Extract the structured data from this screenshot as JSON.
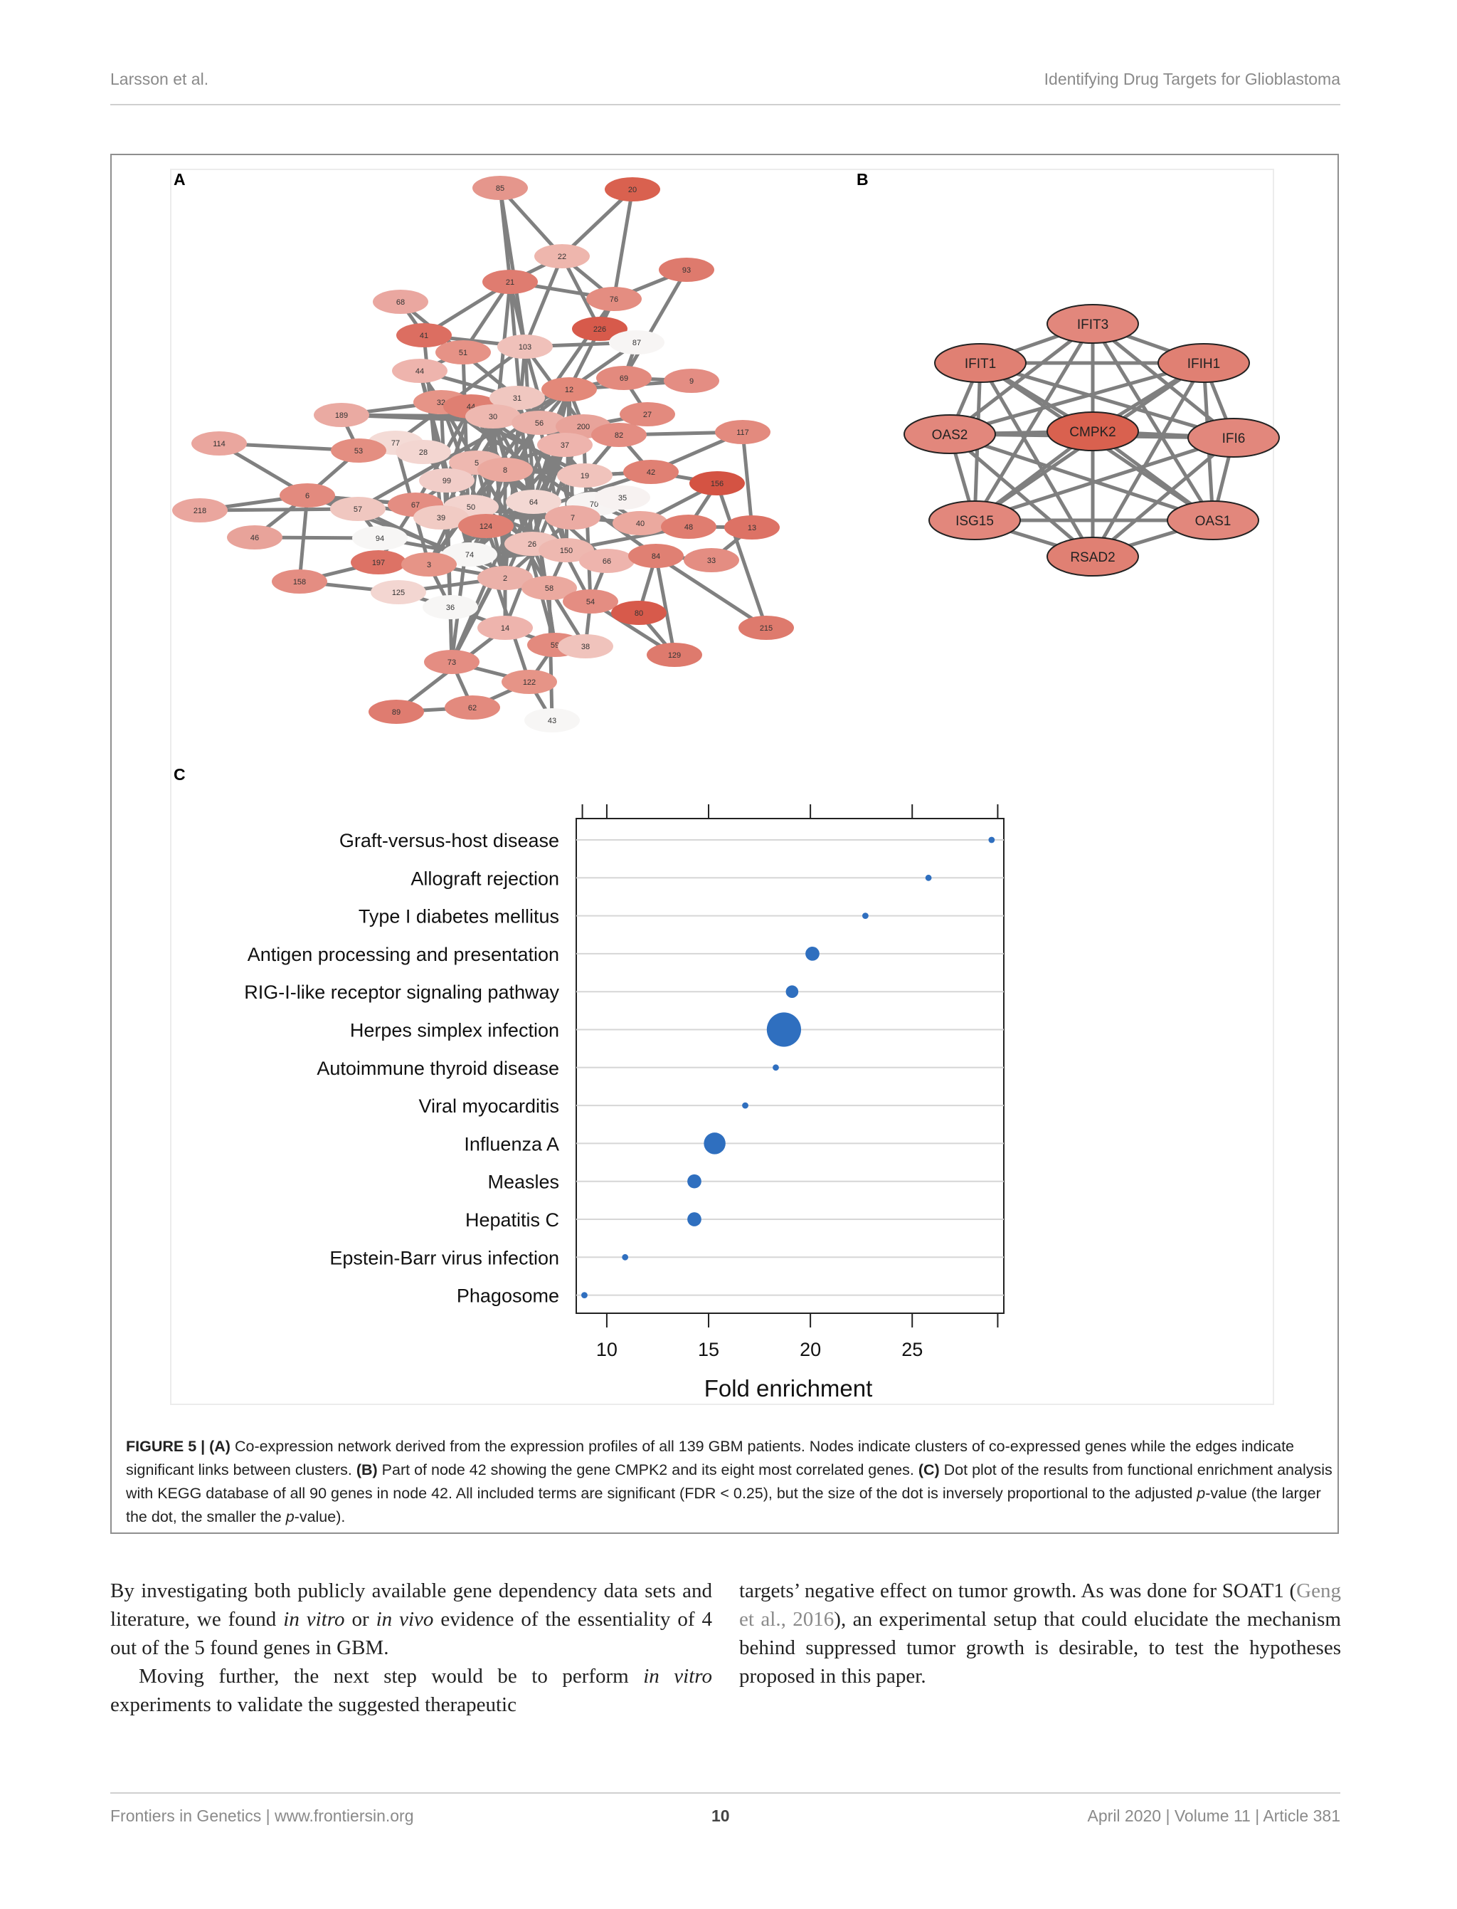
{
  "header": {
    "left": "Larsson et al.",
    "right": "Identifying Drug Targets for Glioblastoma"
  },
  "panels": {
    "a": "A",
    "b": "B",
    "c": "C"
  },
  "network_a": {
    "edge_color": "#808080",
    "nodes": [
      {
        "id": "85",
        "c": "#e5968c"
      },
      {
        "id": "20",
        "c": "#d9614f"
      },
      {
        "id": "22",
        "c": "#eeb6ad"
      },
      {
        "id": "93",
        "c": "#de7a6d"
      },
      {
        "id": "21",
        "c": "#df7c70"
      },
      {
        "id": "68",
        "c": "#eaa7a0"
      },
      {
        "id": "76",
        "c": "#e48d81"
      },
      {
        "id": "226",
        "c": "#d75a4b"
      },
      {
        "id": "87",
        "c": "#f7f5f4"
      },
      {
        "id": "41",
        "c": "#dc6e61"
      },
      {
        "id": "51",
        "c": "#e69286"
      },
      {
        "id": "103",
        "c": "#f0c1ba"
      },
      {
        "id": "44",
        "c": "#eeb4ad"
      },
      {
        "id": "69",
        "c": "#e38a7e"
      },
      {
        "id": "9",
        "c": "#e48d83"
      },
      {
        "id": "12",
        "c": "#e38879"
      },
      {
        "id": "32",
        "c": "#e69487"
      },
      {
        "id": "44b",
        "label": "44",
        "c": "#df7f72"
      },
      {
        "id": "31",
        "c": "#f0c7c0"
      },
      {
        "id": "30",
        "c": "#eeb8b0"
      },
      {
        "id": "27",
        "c": "#e38a7e"
      },
      {
        "id": "189",
        "c": "#eaaaa2"
      },
      {
        "id": "56",
        "c": "#ebb1a9"
      },
      {
        "id": "200",
        "c": "#e8a39a"
      },
      {
        "id": "82",
        "c": "#e48d82"
      },
      {
        "id": "117",
        "c": "#e38a7e"
      },
      {
        "id": "114",
        "c": "#eaa69e"
      },
      {
        "id": "77",
        "c": "#f4dbd6"
      },
      {
        "id": "53",
        "c": "#e48e81"
      },
      {
        "id": "28",
        "c": "#f3d6d1"
      },
      {
        "id": "37",
        "c": "#eeb4ad"
      },
      {
        "id": "5",
        "c": "#eeb8b0"
      },
      {
        "id": "8",
        "c": "#eba99f"
      },
      {
        "id": "99",
        "c": "#f1cdc8"
      },
      {
        "id": "19",
        "c": "#f0c3bc"
      },
      {
        "id": "42",
        "c": "#e08073"
      },
      {
        "id": "156",
        "c": "#d45343"
      },
      {
        "id": "6",
        "c": "#e38a7e"
      },
      {
        "id": "218",
        "c": "#eaa69e"
      },
      {
        "id": "57",
        "c": "#f0c7c0"
      },
      {
        "id": "67",
        "c": "#e48d82"
      },
      {
        "id": "50",
        "c": "#f3d3ce"
      },
      {
        "id": "39",
        "c": "#f1cbc4"
      },
      {
        "id": "64",
        "c": "#f3d8d3"
      },
      {
        "id": "70",
        "c": "#f7f4f3"
      },
      {
        "id": "35",
        "c": "#f7f2f1"
      },
      {
        "id": "7",
        "c": "#ebaba3"
      },
      {
        "id": "124",
        "c": "#e08073"
      },
      {
        "id": "40",
        "c": "#eba99f"
      },
      {
        "id": "48",
        "c": "#e07d70"
      },
      {
        "id": "13",
        "c": "#dd7265"
      },
      {
        "id": "46",
        "c": "#e8a39a"
      },
      {
        "id": "94",
        "c": "#f7f6f5"
      },
      {
        "id": "26",
        "c": "#f0c3bc"
      },
      {
        "id": "150",
        "c": "#eeb8b0"
      },
      {
        "id": "74",
        "c": "#f7f6f5"
      },
      {
        "id": "66",
        "c": "#eeb4ad"
      },
      {
        "id": "84",
        "c": "#e08073"
      },
      {
        "id": "33",
        "c": "#e48d82"
      },
      {
        "id": "197",
        "c": "#dd7265"
      },
      {
        "id": "3",
        "c": "#e69487"
      },
      {
        "id": "158",
        "c": "#e48d82"
      },
      {
        "id": "2",
        "c": "#ebb1a9"
      },
      {
        "id": "125",
        "c": "#f3d6d1"
      },
      {
        "id": "58",
        "c": "#eba99f"
      },
      {
        "id": "36",
        "c": "#f7f6f5"
      },
      {
        "id": "54",
        "c": "#e48d82"
      },
      {
        "id": "80",
        "c": "#d75a4b"
      },
      {
        "id": "215",
        "c": "#de7a6d"
      },
      {
        "id": "14",
        "c": "#eeb4ad"
      },
      {
        "id": "59",
        "c": "#e38a7e"
      },
      {
        "id": "38",
        "c": "#f0c3bc"
      },
      {
        "id": "129",
        "c": "#de7a6d"
      },
      {
        "id": "73",
        "c": "#e48d82"
      },
      {
        "id": "122",
        "c": "#e69487"
      },
      {
        "id": "89",
        "c": "#df7c70"
      },
      {
        "id": "62",
        "c": "#e38a7e"
      },
      {
        "id": "43",
        "c": "#f7f6f5"
      }
    ]
  },
  "network_b": {
    "center": {
      "label": "CMPK2",
      "c": "#d9614f"
    },
    "outer": [
      {
        "label": "IFIT3",
        "c": "#e2877c"
      },
      {
        "label": "IFIH1",
        "c": "#e08073"
      },
      {
        "label": "IFI6",
        "c": "#e2877c"
      },
      {
        "label": "OAS1",
        "c": "#e2877c"
      },
      {
        "label": "RSAD2",
        "c": "#e08073"
      },
      {
        "label": "ISG15",
        "c": "#e2877c"
      },
      {
        "label": "OAS2",
        "c": "#e2877c"
      },
      {
        "label": "IFIT1",
        "c": "#e08073"
      }
    ]
  },
  "chart_data": {
    "type": "scatter",
    "xlabel": "Fold enrichment",
    "xticks": [
      10,
      15,
      20,
      25
    ],
    "xlim": [
      8.5,
      29.5
    ],
    "grid": true,
    "dot_color": "#2f6fbf",
    "categories": [
      "Graft-versus-host disease",
      "Allograft rejection",
      "Type I diabetes mellitus",
      "Antigen processing and presentation",
      "RIG-I-like receptor signaling pathway",
      "Herpes simplex infection",
      "Autoimmune thyroid disease",
      "Viral myocarditis",
      "Influenza A",
      "Measles",
      "Hepatitis C",
      "Epstein-Barr virus infection",
      "Phagosome"
    ],
    "x": [
      28.9,
      25.8,
      22.7,
      20.1,
      19.1,
      18.7,
      18.3,
      16.8,
      15.3,
      14.3,
      14.3,
      10.9,
      8.9
    ],
    "size_rank": [
      1,
      1,
      1,
      5,
      4,
      30,
      1,
      1,
      12,
      5,
      5,
      1,
      1
    ]
  },
  "caption": {
    "label": "FIGURE 5 | ",
    "a_tag": "(A)",
    "a_text": " Co-expression network derived from the expression profiles of all 139 GBM patients. Nodes indicate clusters of co-expressed genes while the edges indicate significant links between clusters. ",
    "b_tag": "(B)",
    "b_text": " Part of node 42 showing the gene CMPK2 and its eight most correlated genes. ",
    "c_tag": "(C)",
    "c_text": " Dot plot of the results from functional enrichment analysis with KEGG database of all 90 genes in node 42. All included terms are significant (FDR < 0.25), but the size of the dot is inversely proportional to the adjusted ",
    "p": "p",
    "c_text2": "-value (the larger the dot, the smaller the ",
    "p2": "p",
    "c_text3": "-value)."
  },
  "body": {
    "left_p1_a": "By investigating both publicly available gene dependency data sets and literature, we found ",
    "left_p1_i1": "in vitro",
    "left_p1_b": " or ",
    "left_p1_i2": "in vivo",
    "left_p1_c": " evidence of the essentiality of 4 out of the 5 found genes in GBM.",
    "left_p2_a": "Moving further, the next step would be to perform ",
    "left_p2_i": "in vitro",
    "left_p2_b": " experiments to validate the suggested therapeutic",
    "right_p1_a": "targets’ negative effect on tumor growth. As was done for SOAT1 (",
    "right_cite": "Geng et al., 2016",
    "right_p1_b": "), an experimental setup that could elucidate the mechanism behind suppressed tumor growth is desirable, to test the hypotheses proposed in this paper."
  },
  "footer": {
    "left": "Frontiers in Genetics | www.frontiersin.org",
    "page": "10",
    "right": "April 2020 | Volume 11 | Article 381"
  }
}
